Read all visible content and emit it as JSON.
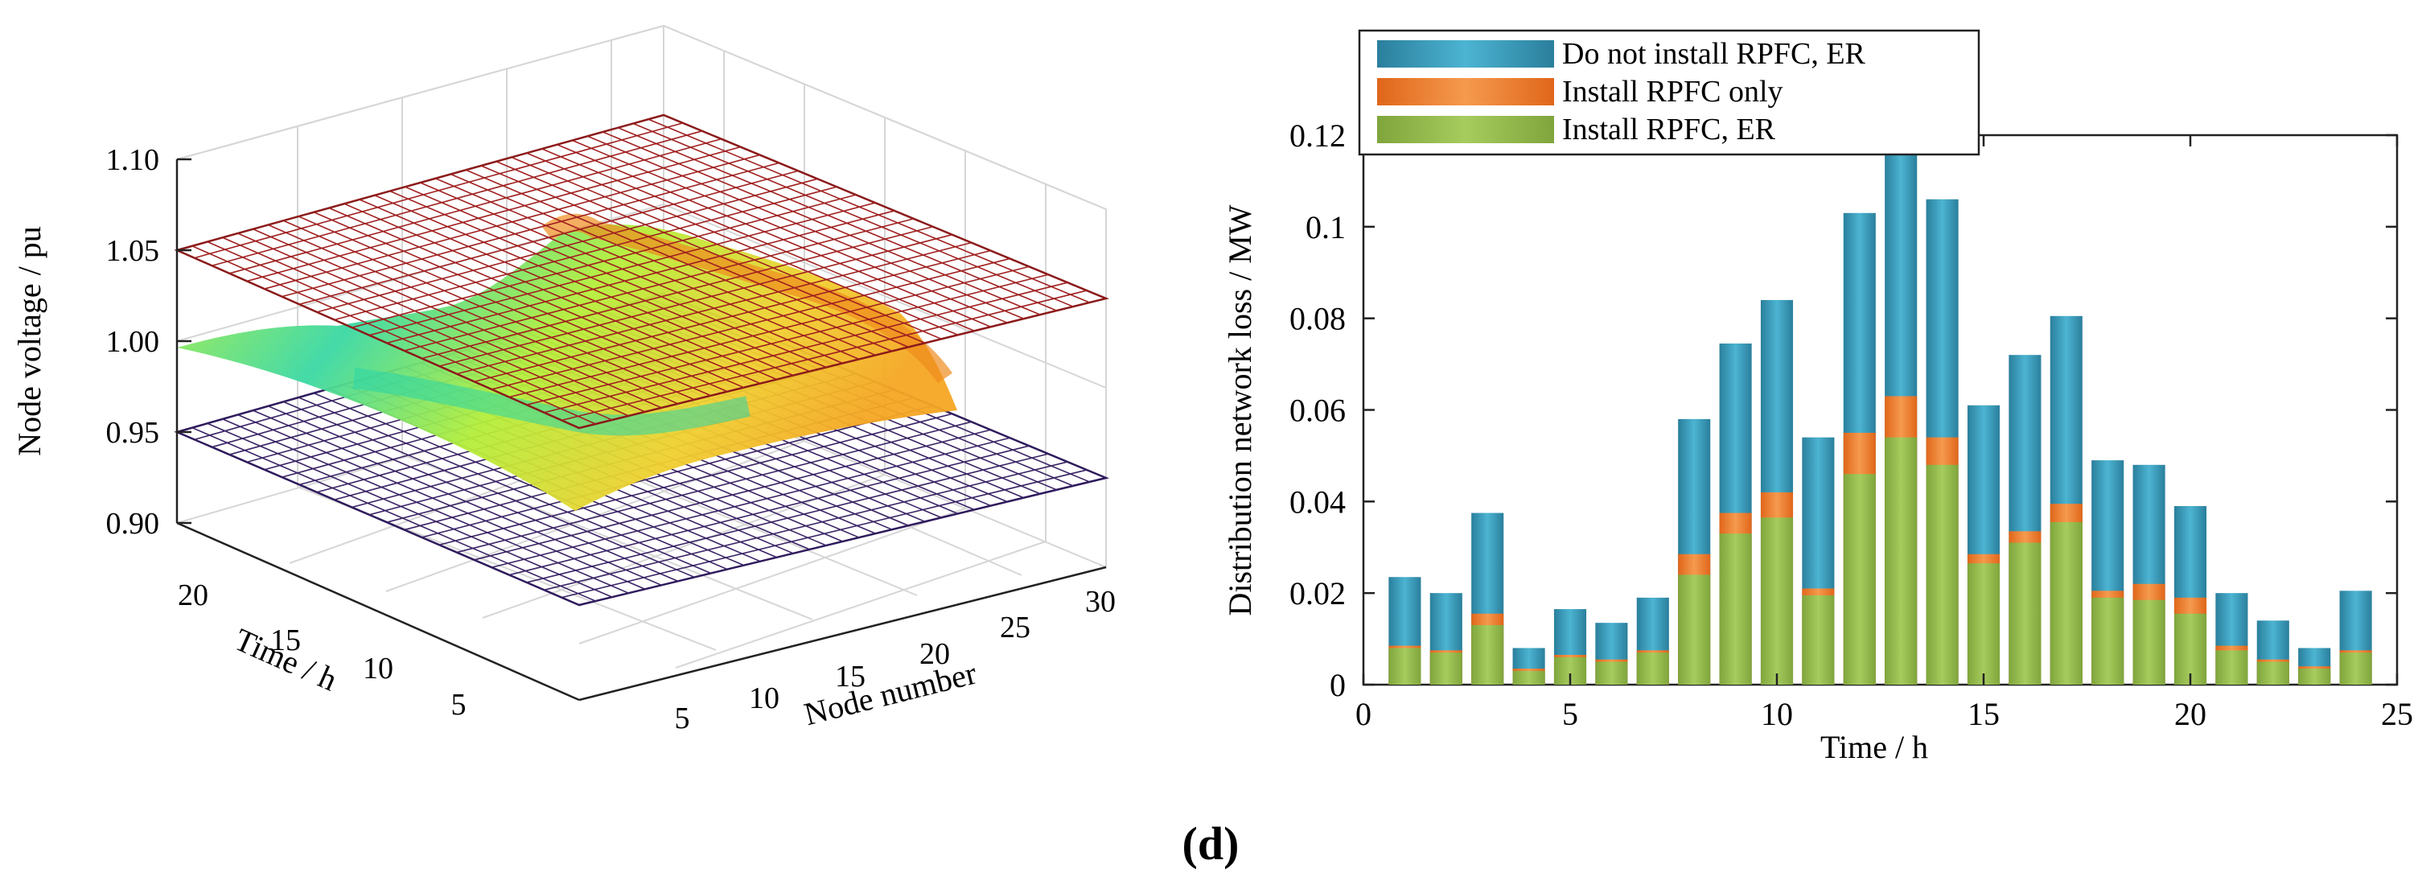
{
  "panel_label": "(d)",
  "chart_data": [
    {
      "type": "surface3d",
      "zlabel": "Node voltage / pu",
      "xlabel": "Node number",
      "ylabel": "Time / h",
      "ztick_labels": [
        "0.90",
        "0.95",
        "1.00",
        "1.05",
        "1.10"
      ],
      "xtick_labels": [
        "5",
        "10",
        "15",
        "20",
        "25",
        "30"
      ],
      "ytick_labels": [
        "5",
        "10",
        "15",
        "20"
      ],
      "zlim": [
        0.9,
        1.1
      ],
      "xlim": [
        1,
        33
      ],
      "ylim": [
        1,
        24
      ],
      "upper_limit_plane": 1.05,
      "lower_limit_plane": 0.95,
      "voltage_range": [
        0.955,
        1.015
      ],
      "colors": {
        "upper_plane": "#8b1a1a",
        "lower_plane": "#2e1a5c",
        "surface_low": "#2ad6a8",
        "surface_mid": "#b4ee3a",
        "surface_high": "#f5a623"
      }
    },
    {
      "type": "bar",
      "stacked_overlay": true,
      "xlabel": "Time / h",
      "ylabel": "Distribution network loss / MW",
      "xlim": [
        0,
        25
      ],
      "ylim": [
        0,
        0.12
      ],
      "xtick_labels": [
        "0",
        "5",
        "10",
        "15",
        "20",
        "25"
      ],
      "ytick_labels": [
        "0",
        "0.02",
        "0.04",
        "0.06",
        "0.08",
        "0.1",
        "0.12"
      ],
      "categories": [
        1,
        2,
        3,
        4,
        5,
        6,
        7,
        8,
        9,
        10,
        11,
        12,
        13,
        14,
        15,
        16,
        17,
        18,
        19,
        20,
        21,
        22,
        23,
        24
      ],
      "series": [
        {
          "name": "Do not install RPFC, ER",
          "color": "#2e8fae",
          "values": [
            0.0235,
            0.02,
            0.0375,
            0.008,
            0.0165,
            0.0135,
            0.019,
            0.058,
            0.0745,
            0.084,
            0.054,
            0.103,
            0.12,
            0.106,
            0.061,
            0.072,
            0.0805,
            0.049,
            0.048,
            0.039,
            0.02,
            0.014,
            0.008,
            0.0205
          ]
        },
        {
          "name": "Install RPFC only",
          "color": "#ee7a22",
          "values": [
            0.0085,
            0.0075,
            0.0155,
            0.0035,
            0.0065,
            0.0055,
            0.0075,
            0.0285,
            0.0375,
            0.042,
            0.021,
            0.055,
            0.063,
            0.054,
            0.0285,
            0.0335,
            0.0395,
            0.0205,
            0.022,
            0.019,
            0.0085,
            0.0055,
            0.004,
            0.0075
          ]
        },
        {
          "name": "Install RPFC, ER",
          "color": "#8bb34a",
          "values": [
            0.008,
            0.007,
            0.013,
            0.003,
            0.006,
            0.005,
            0.007,
            0.024,
            0.033,
            0.0365,
            0.0195,
            0.046,
            0.054,
            0.048,
            0.0265,
            0.031,
            0.0355,
            0.019,
            0.0185,
            0.0155,
            0.0075,
            0.005,
            0.0035,
            0.007
          ]
        }
      ],
      "legend_position": "top-left"
    }
  ]
}
